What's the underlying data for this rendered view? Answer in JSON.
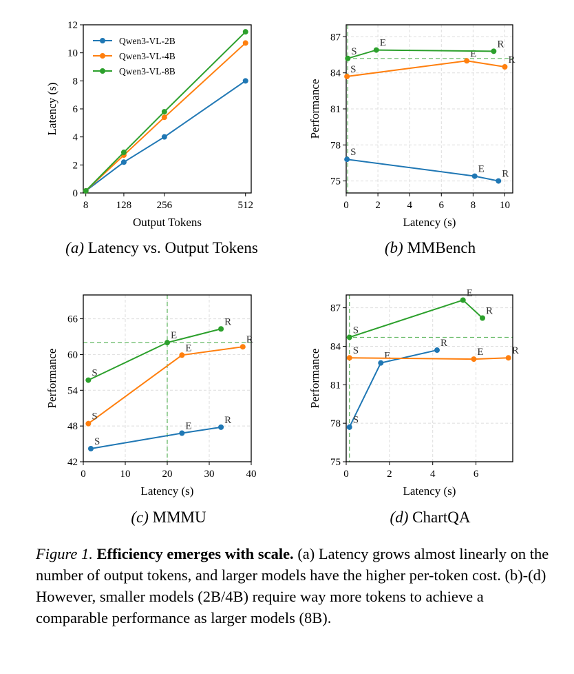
{
  "chart_data": [
    {
      "type": "line",
      "title": "Latency vs. Output Tokens",
      "subtitle_label": "(a)",
      "xlabel": "Output Tokens",
      "ylabel": "Latency (s)",
      "xlim": [
        0,
        530
      ],
      "ylim": [
        0,
        12
      ],
      "xticks": [
        8,
        128,
        256,
        512
      ],
      "yticks": [
        0,
        2,
        4,
        6,
        8,
        10,
        12
      ],
      "grid": false,
      "legend_position": "top-left",
      "x": [
        8,
        128,
        256,
        512
      ],
      "series": [
        {
          "name": "Qwen3-VL-2B",
          "color": "#1f77b4",
          "values": [
            0.15,
            2.2,
            4.0,
            8.0
          ]
        },
        {
          "name": "Qwen3-VL-4B",
          "color": "#ff7f0e",
          "values": [
            0.15,
            2.7,
            5.4,
            10.7
          ]
        },
        {
          "name": "Qwen3-VL-8B",
          "color": "#2ca02c",
          "values": [
            0.15,
            2.9,
            5.8,
            11.5
          ]
        }
      ]
    },
    {
      "type": "line",
      "title": "MMBench",
      "subtitle_label": "(b)",
      "xlabel": "Latency (s)",
      "ylabel": "Performance",
      "xlim": [
        0,
        10.5
      ],
      "ylim": [
        74,
        88
      ],
      "xticks": [
        0,
        2,
        4,
        6,
        8,
        10
      ],
      "yticks": [
        75,
        78,
        81,
        84,
        87
      ],
      "grid": true,
      "reference_lines": {
        "x": 0.1,
        "y": 85.2,
        "color": "#2ca02c"
      },
      "series": [
        {
          "name": "Qwen3-VL-2B",
          "color": "#1f77b4",
          "points": [
            {
              "x": 0.05,
              "y": 76.8,
              "label": "S"
            },
            {
              "x": 8.1,
              "y": 75.4,
              "label": "E"
            },
            {
              "x": 9.6,
              "y": 75.0,
              "label": "R"
            }
          ]
        },
        {
          "name": "Qwen3-VL-4B",
          "color": "#ff7f0e",
          "points": [
            {
              "x": 0.05,
              "y": 83.7,
              "label": "S"
            },
            {
              "x": 7.6,
              "y": 85.0,
              "label": "E"
            },
            {
              "x": 10.0,
              "y": 84.5,
              "label": "R"
            }
          ]
        },
        {
          "name": "Qwen3-VL-8B",
          "color": "#2ca02c",
          "points": [
            {
              "x": 0.1,
              "y": 85.2,
              "label": "S"
            },
            {
              "x": 1.9,
              "y": 85.9,
              "label": "E"
            },
            {
              "x": 9.3,
              "y": 85.8,
              "label": "R"
            }
          ]
        }
      ]
    },
    {
      "type": "line",
      "title": "MMMU",
      "subtitle_label": "(c)",
      "xlabel": "Latency (s)",
      "ylabel": "Performance",
      "xlim": [
        0,
        40
      ],
      "ylim": [
        42,
        70
      ],
      "xticks": [
        0,
        10,
        20,
        30,
        40
      ],
      "yticks": [
        42,
        48,
        54,
        60,
        66
      ],
      "grid": true,
      "reference_lines": {
        "x": 20,
        "y": 62,
        "color": "#2ca02c"
      },
      "series": [
        {
          "name": "Qwen3-VL-2B",
          "color": "#1f77b4",
          "points": [
            {
              "x": 1.8,
              "y": 44.2,
              "label": "S"
            },
            {
              "x": 23.5,
              "y": 46.8,
              "label": "E"
            },
            {
              "x": 32.8,
              "y": 47.8,
              "label": "R"
            }
          ]
        },
        {
          "name": "Qwen3-VL-4B",
          "color": "#ff7f0e",
          "points": [
            {
              "x": 1.2,
              "y": 48.4,
              "label": "S"
            },
            {
              "x": 23.5,
              "y": 59.9,
              "label": "E"
            },
            {
              "x": 38.0,
              "y": 61.3,
              "label": "R"
            }
          ]
        },
        {
          "name": "Qwen3-VL-8B",
          "color": "#2ca02c",
          "points": [
            {
              "x": 1.2,
              "y": 55.7,
              "label": "S"
            },
            {
              "x": 20.0,
              "y": 62.0,
              "label": "E"
            },
            {
              "x": 32.8,
              "y": 64.3,
              "label": "R"
            }
          ]
        }
      ]
    },
    {
      "type": "line",
      "title": "ChartQA",
      "subtitle_label": "(d)",
      "xlabel": "Latency (s)",
      "ylabel": "Performance",
      "xlim": [
        0,
        7.7
      ],
      "ylim": [
        75,
        88
      ],
      "xticks": [
        0,
        2,
        4,
        6
      ],
      "yticks": [
        75,
        78,
        81,
        84,
        87
      ],
      "grid": true,
      "reference_lines": {
        "x": 0.15,
        "y": 84.7,
        "color": "#2ca02c"
      },
      "series": [
        {
          "name": "Qwen3-VL-2B",
          "color": "#1f77b4",
          "points": [
            {
              "x": 0.15,
              "y": 77.7,
              "label": "S"
            },
            {
              "x": 1.6,
              "y": 82.7,
              "label": "E"
            },
            {
              "x": 4.2,
              "y": 83.7,
              "label": "R"
            }
          ]
        },
        {
          "name": "Qwen3-VL-4B",
          "color": "#ff7f0e",
          "points": [
            {
              "x": 0.15,
              "y": 83.1,
              "label": "S"
            },
            {
              "x": 5.9,
              "y": 83.0,
              "label": "E"
            },
            {
              "x": 7.5,
              "y": 83.1,
              "label": "R"
            }
          ]
        },
        {
          "name": "Qwen3-VL-8B",
          "color": "#2ca02c",
          "points": [
            {
              "x": 0.15,
              "y": 84.7,
              "label": "S"
            },
            {
              "x": 5.4,
              "y": 87.6,
              "label": "E"
            },
            {
              "x": 6.3,
              "y": 86.2,
              "label": "R"
            }
          ]
        }
      ]
    }
  ],
  "caption": {
    "figure_label": "Figure 1.",
    "bold_text": "Efficiency emerges with scale.",
    "body_text": "(a) Latency grows almost linearly on the number of output tokens, and larger models have the higher per-token cost. (b)-(d) However, smaller models (2B/4B) require way more tokens to achieve a comparable performance as larger models (8B)."
  }
}
